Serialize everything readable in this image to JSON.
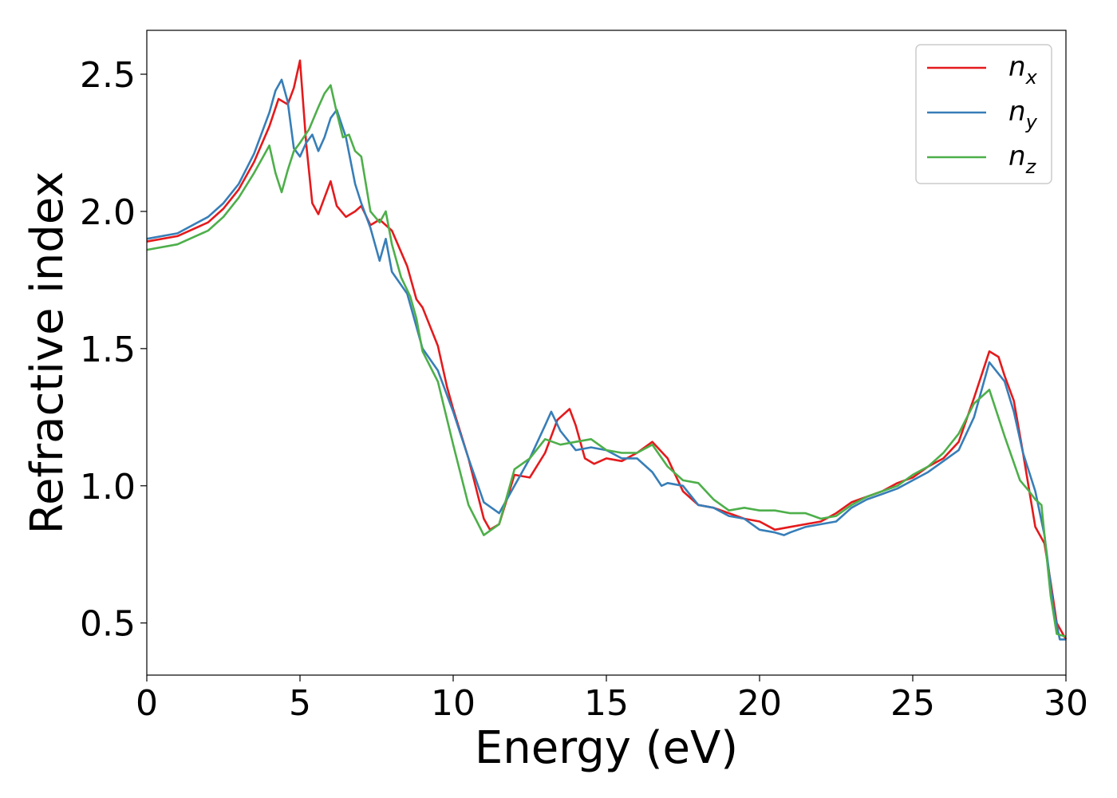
{
  "chart_data": {
    "type": "line",
    "xlabel": "Energy (eV)",
    "ylabel": "Refractive index",
    "xlim": [
      0,
      30
    ],
    "ylim": [
      0.31,
      2.66
    ],
    "xticks": [
      0,
      5,
      10,
      15,
      20,
      25,
      30
    ],
    "yticks": [
      0.5,
      1.0,
      1.5,
      2.0,
      2.5
    ],
    "xtick_labels": [
      "0",
      "5",
      "10",
      "15",
      "20",
      "25",
      "30"
    ],
    "ytick_labels": [
      "0.5",
      "1.0",
      "1.5",
      "2.0",
      "2.5"
    ],
    "grid": false,
    "legend_position": "top-right",
    "series": [
      {
        "name": "n_x",
        "legend_base": "n",
        "legend_sub": "x",
        "color": "#e41a1c",
        "x": [
          0,
          1,
          2,
          2.5,
          3,
          3.5,
          4,
          4.3,
          4.6,
          4.8,
          5.0,
          5.2,
          5.4,
          5.6,
          5.8,
          6.0,
          6.2,
          6.5,
          6.8,
          7.0,
          7.3,
          7.6,
          8.0,
          8.5,
          8.8,
          9.0,
          9.5,
          9.8,
          10.0,
          10.5,
          11.0,
          11.2,
          11.5,
          12.0,
          12.5,
          13.0,
          13.4,
          13.8,
          14.0,
          14.3,
          14.6,
          15.0,
          15.5,
          16.0,
          16.5,
          17.0,
          17.5,
          18.0,
          18.5,
          19.0,
          19.5,
          20.0,
          20.5,
          21.0,
          21.5,
          22.0,
          22.5,
          23.0,
          23.5,
          24.0,
          24.5,
          25.0,
          25.5,
          26.0,
          26.5,
          27.0,
          27.5,
          27.8,
          28.0,
          28.3,
          28.6,
          29.0,
          29.3,
          29.5,
          29.7,
          30.0
        ],
        "y": [
          1.89,
          1.91,
          1.96,
          2.01,
          2.08,
          2.18,
          2.31,
          2.41,
          2.39,
          2.45,
          2.55,
          2.25,
          2.03,
          1.99,
          2.05,
          2.11,
          2.02,
          1.98,
          2.0,
          2.02,
          1.95,
          1.97,
          1.93,
          1.8,
          1.68,
          1.65,
          1.51,
          1.36,
          1.28,
          1.1,
          0.88,
          0.84,
          0.86,
          1.04,
          1.03,
          1.12,
          1.24,
          1.28,
          1.22,
          1.1,
          1.08,
          1.1,
          1.09,
          1.12,
          1.16,
          1.1,
          0.98,
          0.93,
          0.92,
          0.9,
          0.88,
          0.87,
          0.84,
          0.85,
          0.86,
          0.87,
          0.9,
          0.94,
          0.96,
          0.98,
          1.01,
          1.03,
          1.07,
          1.1,
          1.16,
          1.32,
          1.49,
          1.47,
          1.4,
          1.31,
          1.12,
          0.85,
          0.79,
          0.65,
          0.5,
          0.44
        ]
      },
      {
        "name": "n_y",
        "legend_base": "n",
        "legend_sub": "y",
        "color": "#377eb8",
        "x": [
          0,
          1,
          2,
          2.5,
          3,
          3.5,
          4,
          4.2,
          4.4,
          4.6,
          4.8,
          5.0,
          5.2,
          5.4,
          5.6,
          5.8,
          6.0,
          6.2,
          6.5,
          6.8,
          7.0,
          7.3,
          7.6,
          7.8,
          8.0,
          8.5,
          9.0,
          9.5,
          10.0,
          10.5,
          11.0,
          11.5,
          12.0,
          12.5,
          13.0,
          13.2,
          13.5,
          14.0,
          14.5,
          15.0,
          15.5,
          16.0,
          16.5,
          16.8,
          17.0,
          17.5,
          18.0,
          18.5,
          19.0,
          19.5,
          20.0,
          20.5,
          20.8,
          21.0,
          21.5,
          22.0,
          22.5,
          23.0,
          23.5,
          24.0,
          24.5,
          25.0,
          25.5,
          26.0,
          26.5,
          27.0,
          27.5,
          28.0,
          28.3,
          28.6,
          29.0,
          29.3,
          29.6,
          29.8,
          30.0
        ],
        "y": [
          1.9,
          1.92,
          1.98,
          2.03,
          2.1,
          2.21,
          2.36,
          2.44,
          2.48,
          2.4,
          2.23,
          2.2,
          2.25,
          2.28,
          2.22,
          2.27,
          2.34,
          2.37,
          2.27,
          2.1,
          2.03,
          1.94,
          1.82,
          1.9,
          1.78,
          1.7,
          1.5,
          1.42,
          1.27,
          1.1,
          0.94,
          0.9,
          1.0,
          1.1,
          1.22,
          1.27,
          1.2,
          1.13,
          1.14,
          1.13,
          1.1,
          1.1,
          1.05,
          1.0,
          1.01,
          1.0,
          0.93,
          0.92,
          0.89,
          0.88,
          0.84,
          0.83,
          0.82,
          0.83,
          0.85,
          0.86,
          0.87,
          0.92,
          0.95,
          0.97,
          0.99,
          1.02,
          1.05,
          1.09,
          1.13,
          1.25,
          1.45,
          1.38,
          1.27,
          1.12,
          0.98,
          0.82,
          0.55,
          0.44,
          0.44
        ]
      },
      {
        "name": "n_z",
        "legend_base": "n",
        "legend_sub": "z",
        "color": "#4daf4a",
        "x": [
          0,
          1,
          2,
          2.5,
          3,
          3.5,
          3.8,
          4.0,
          4.2,
          4.4,
          4.6,
          4.8,
          5.0,
          5.3,
          5.6,
          5.8,
          6.0,
          6.2,
          6.4,
          6.6,
          6.8,
          7.0,
          7.3,
          7.6,
          7.8,
          8.0,
          8.3,
          8.6,
          8.8,
          9.0,
          9.5,
          10.0,
          10.5,
          11.0,
          11.5,
          12.0,
          12.5,
          13.0,
          13.5,
          14.0,
          14.5,
          15.0,
          15.5,
          16.0,
          16.5,
          17.0,
          17.5,
          18.0,
          18.5,
          19.0,
          19.5,
          20.0,
          20.5,
          21.0,
          21.5,
          22.0,
          22.5,
          23.0,
          23.5,
          24.0,
          24.5,
          25.0,
          25.5,
          26.0,
          26.5,
          27.0,
          27.5,
          28.0,
          28.5,
          28.8,
          29.0,
          29.2,
          29.5,
          29.7,
          30.0
        ],
        "y": [
          1.86,
          1.88,
          1.93,
          1.98,
          2.05,
          2.14,
          2.2,
          2.24,
          2.14,
          2.07,
          2.15,
          2.22,
          2.25,
          2.3,
          2.38,
          2.43,
          2.46,
          2.36,
          2.27,
          2.28,
          2.22,
          2.2,
          2.0,
          1.96,
          2.0,
          1.88,
          1.76,
          1.69,
          1.61,
          1.49,
          1.38,
          1.15,
          0.93,
          0.82,
          0.86,
          1.06,
          1.1,
          1.17,
          1.15,
          1.16,
          1.17,
          1.13,
          1.12,
          1.12,
          1.15,
          1.07,
          1.02,
          1.01,
          0.95,
          0.91,
          0.92,
          0.91,
          0.91,
          0.9,
          0.9,
          0.88,
          0.89,
          0.93,
          0.96,
          0.98,
          1.0,
          1.04,
          1.07,
          1.12,
          1.19,
          1.3,
          1.35,
          1.18,
          1.02,
          0.98,
          0.95,
          0.93,
          0.6,
          0.46,
          0.45
        ]
      }
    ]
  }
}
